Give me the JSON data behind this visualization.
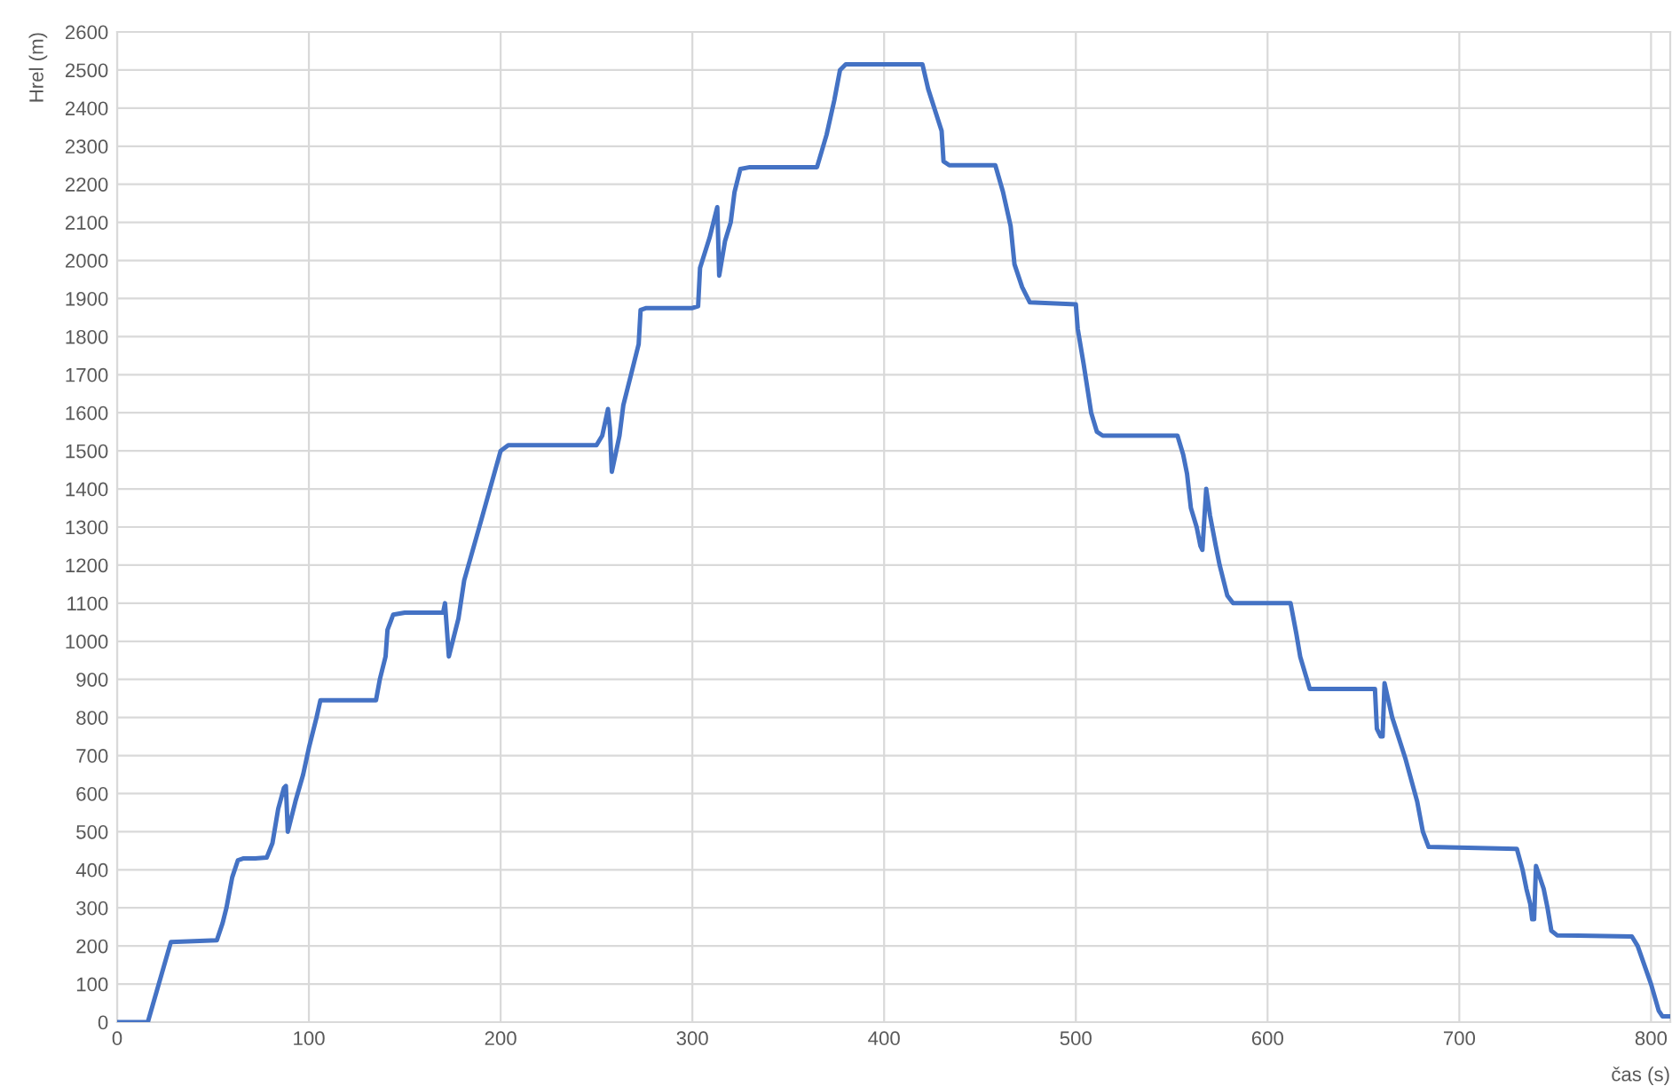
{
  "chart_data": {
    "type": "line",
    "xlabel": "čas (s)",
    "ylabel": "Hrel (m)",
    "xlim": [
      0,
      810
    ],
    "ylim": [
      0,
      2600
    ],
    "xticks": [
      0,
      100,
      200,
      300,
      400,
      500,
      600,
      700,
      800
    ],
    "yticks": [
      0,
      100,
      200,
      300,
      400,
      500,
      600,
      700,
      800,
      900,
      1000,
      1100,
      1200,
      1300,
      1400,
      1500,
      1600,
      1700,
      1800,
      1900,
      2000,
      2100,
      2200,
      2300,
      2400,
      2500,
      2600
    ],
    "grid": true,
    "marker": "none",
    "line_style": "solid",
    "series": [
      {
        "color": "#4472c4",
        "x": [
          0,
          16,
          28,
          52,
          55,
          57,
          60,
          63,
          66,
          72,
          78,
          81,
          84,
          87,
          88,
          89,
          93,
          97,
          100,
          104,
          106,
          135,
          137,
          140,
          141,
          144,
          150,
          170,
          171,
          173,
          178,
          181,
          190,
          200,
          204,
          250,
          253,
          256,
          257,
          258,
          262,
          264,
          268,
          272,
          273,
          276,
          300,
          303,
          304,
          309,
          313,
          314,
          317,
          320,
          322,
          325,
          330,
          365,
          370,
          374,
          377,
          380,
          420,
          423,
          430,
          431,
          434,
          458,
          462,
          466,
          468,
          472,
          476,
          500,
          501,
          504,
          508,
          511,
          514,
          553,
          556,
          558,
          560,
          563,
          565,
          566,
          568,
          570,
          573,
          575,
          579,
          582,
          612,
          615,
          617,
          622,
          656,
          657,
          659,
          660,
          661,
          665,
          672,
          678,
          681,
          684,
          730,
          733,
          735,
          737,
          738,
          739,
          740,
          744,
          746,
          748,
          751,
          790,
          793,
          800,
          804,
          806,
          810
        ],
        "values": [
          0,
          0,
          210,
          215,
          260,
          300,
          380,
          425,
          430,
          430,
          432,
          470,
          560,
          615,
          620,
          500,
          580,
          650,
          720,
          800,
          845,
          845,
          900,
          960,
          1030,
          1070,
          1075,
          1075,
          1100,
          960,
          1060,
          1160,
          1320,
          1500,
          1515,
          1515,
          1540,
          1610,
          1560,
          1445,
          1540,
          1620,
          1700,
          1780,
          1870,
          1875,
          1875,
          1880,
          1980,
          2060,
          2140,
          1960,
          2050,
          2100,
          2180,
          2240,
          2245,
          2245,
          2330,
          2420,
          2500,
          2515,
          2515,
          2450,
          2340,
          2260,
          2250,
          2250,
          2180,
          2090,
          1990,
          1930,
          1890,
          1885,
          1820,
          1730,
          1600,
          1550,
          1540,
          1540,
          1490,
          1440,
          1350,
          1300,
          1250,
          1240,
          1400,
          1330,
          1250,
          1200,
          1120,
          1100,
          1100,
          1020,
          960,
          875,
          875,
          770,
          750,
          750,
          890,
          800,
          690,
          580,
          500,
          460,
          455,
          400,
          350,
          310,
          270,
          270,
          410,
          350,
          300,
          240,
          228,
          225,
          200,
          100,
          30,
          15,
          15
        ]
      }
    ]
  }
}
